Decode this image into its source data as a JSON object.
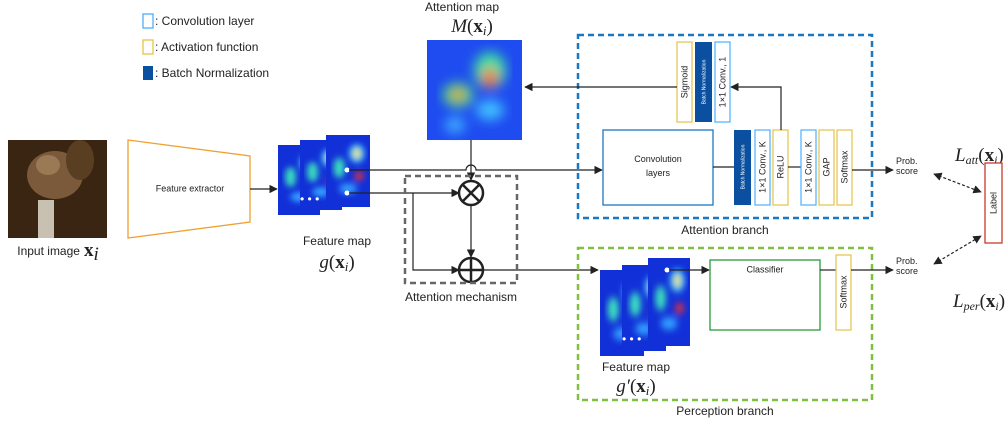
{
  "legend": {
    "items": [
      ": Convolution layer",
      ": Activation function",
      ": Batch Normalization"
    ]
  },
  "attention_map": {
    "title": "Attention map",
    "symbol": [
      "M",
      "(",
      "x",
      "i",
      ")"
    ]
  },
  "input_image": {
    "label": "Input image",
    "symbol": [
      "x",
      "i"
    ]
  },
  "feature_extractor": "Feature extractor",
  "feature_map": {
    "label": "Feature map",
    "symbol": [
      "g",
      "(",
      "x",
      "i",
      ")"
    ]
  },
  "attention_mechanism": "Attention mechanism",
  "attention_branch": {
    "title": "Attention branch",
    "convolution_layers": "Convolution layers",
    "top_layers": [
      "Sigmoid",
      "Batch Normalization",
      "1×1 Conv., 1"
    ],
    "layers": [
      "Batch Normalization",
      "1×1 Conv., K",
      "ReLU",
      "1×1 Conv., K",
      "GAP",
      "Softmax"
    ],
    "output": "Prob. score",
    "loss": [
      "L",
      "att",
      "(",
      "x",
      "i",
      ")"
    ]
  },
  "perception_branch": {
    "title": "Perception branch",
    "classifier": "Classifier",
    "softmax": "Softmax",
    "feature_map": {
      "label": "Feature map",
      "symbol": [
        "g′",
        "(",
        "x",
        "i",
        ")"
      ]
    },
    "output": "Prob. score",
    "loss": [
      "L",
      "per",
      "(",
      "x",
      "i",
      ")"
    ]
  },
  "label": "Label"
}
